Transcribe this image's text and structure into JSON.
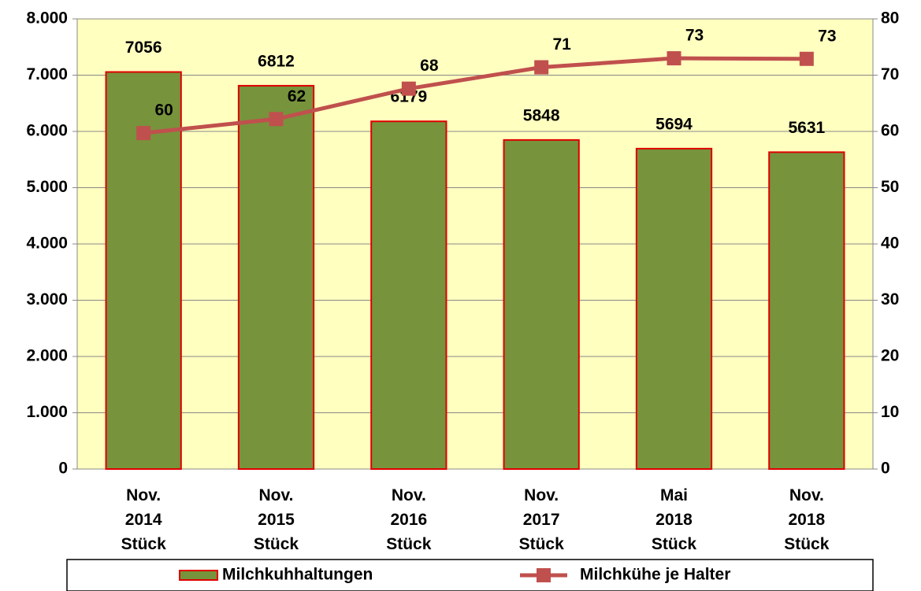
{
  "chart_data": {
    "type": "bar-line",
    "categories": [
      "Nov.\n2014\nStück",
      "Nov.\n2015\nStück",
      "Nov.\n2016\nStück",
      "Nov.\n2017\nStück",
      "Mai\n2018\nStück",
      "Nov.\n2018\nStück"
    ],
    "series": [
      {
        "name": "Milchkuhhaltungen",
        "type": "bar",
        "color": "#77933c",
        "edge_color": "#e00000",
        "values": [
          7056,
          6812,
          6179,
          5848,
          5694,
          5631
        ]
      },
      {
        "name": "Milchkühe je Halter",
        "type": "line",
        "axis": "y2",
        "color": "#c0504d",
        "values": [
          59.7,
          62.2,
          67.6,
          71.4,
          73.0,
          72.9
        ],
        "value_labels": [
          "60",
          "62",
          "68",
          "71",
          "73",
          "73"
        ]
      }
    ],
    "ylim": [
      0,
      8000
    ],
    "yticks": [
      0,
      {
        "value": 1000,
        "label": "1.000"
      },
      {
        "value": 2000,
        "label": "2.000"
      },
      {
        "value": 3000,
        "label": "3.000"
      },
      {
        "value": 4000,
        "label": "4.000"
      },
      {
        "value": 5000,
        "label": "5.000"
      },
      {
        "value": 6000,
        "label": "6.000"
      },
      {
        "value": 7000,
        "label": "7.000"
      },
      {
        "value": 8000,
        "label": "8.000"
      }
    ],
    "y2lim": [
      0,
      80
    ],
    "y2ticks": [
      0,
      10,
      20,
      30,
      40,
      50,
      60,
      70,
      80
    ],
    "grid": true,
    "background": "#ffffc0",
    "legend": "bottom"
  }
}
